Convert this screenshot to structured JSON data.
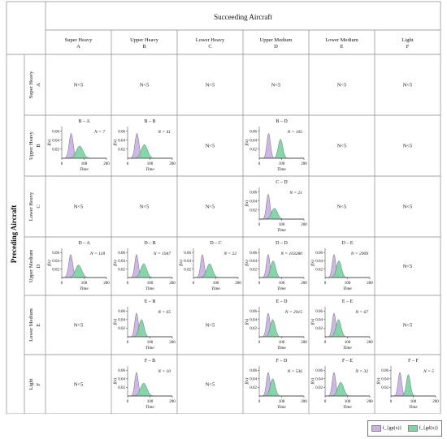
{
  "titles": {
    "succeeding": "Succeeding Aircraft",
    "preceding": "Preceding Aircraft"
  },
  "categories": [
    {
      "name": "Super Heavy",
      "code": "A"
    },
    {
      "name": "Upper Heavy",
      "code": "B"
    },
    {
      "name": "Lower Heavy",
      "code": "C"
    },
    {
      "name": "Upper Medium",
      "code": "D"
    },
    {
      "name": "Lower Medium",
      "code": "E"
    },
    {
      "name": "Light",
      "code": "F"
    }
  ],
  "empty_label": "N<5",
  "axis": {
    "xlabel": "Time",
    "ylabel": "f(x)",
    "xticks": [
      0,
      100,
      200
    ],
    "yticks": [
      0.02,
      0.04,
      0.06
    ],
    "xlim": [
      0,
      200
    ],
    "ylim": [
      0,
      0.07
    ]
  },
  "legend": {
    "series_a": "f_{gp(x)}",
    "series_b": "f_{gd(x)}"
  },
  "colors": {
    "series_a": "#c9b3e6",
    "series_b": "#7dd5a3",
    "outline": "#555555",
    "grid": "#888888"
  },
  "chart_data": {
    "type": "area",
    "rows": [
      [
        "N<5",
        "N<5",
        "N<5",
        "N<5",
        "N<5",
        "N<5"
      ],
      [
        {
          "title": "B – A",
          "n": "N = 7",
          "peaks": [
            {
              "mu": 42,
              "sigma": 9,
              "h": 0.055
            },
            {
              "mu": 80,
              "sigma": 15,
              "h": 0.027
            }
          ]
        },
        {
          "title": "B – B",
          "n": "N = 41",
          "peaks": [
            {
              "mu": 42,
              "sigma": 9,
              "h": 0.055
            },
            {
              "mu": 75,
              "sigma": 14,
              "h": 0.03
            }
          ]
        },
        "N<5",
        {
          "title": "B – D",
          "n": "N = 105",
          "peaks": [
            {
              "mu": 42,
              "sigma": 8,
              "h": 0.055
            },
            {
              "mu": 95,
              "sigma": 10,
              "h": 0.042
            }
          ]
        },
        "N<5",
        "N<5"
      ],
      [
        "N<5",
        "N<5",
        "N<5",
        {
          "title": "C – D",
          "n": "N = 21",
          "peaks": [
            {
              "mu": 40,
              "sigma": 8,
              "h": 0.055
            },
            {
              "mu": 68,
              "sigma": 13,
              "h": 0.024
            }
          ]
        },
        "N<5",
        "N<5"
      ],
      [
        {
          "title": "D – A",
          "n": "N = 118",
          "peaks": [
            {
              "mu": 40,
              "sigma": 9,
              "h": 0.055
            },
            {
              "mu": 75,
              "sigma": 14,
              "h": 0.03
            }
          ]
        },
        {
          "title": "D – B",
          "n": "N = 1947",
          "peaks": [
            {
              "mu": 40,
              "sigma": 8,
              "h": 0.055
            },
            {
              "mu": 72,
              "sigma": 13,
              "h": 0.033
            }
          ]
        },
        {
          "title": "D – C",
          "n": "N = 22",
          "peaks": [
            {
              "mu": 40,
              "sigma": 8,
              "h": 0.055
            },
            {
              "mu": 72,
              "sigma": 13,
              "h": 0.033
            }
          ]
        },
        {
          "title": "D – D",
          "n": "N = 103280",
          "peaks": [
            {
              "mu": 40,
              "sigma": 8,
              "h": 0.055
            },
            {
              "mu": 62,
              "sigma": 11,
              "h": 0.04
            }
          ]
        },
        {
          "title": "D – E",
          "n": "N = 2909",
          "peaks": [
            {
              "mu": 40,
              "sigma": 8,
              "h": 0.055
            },
            {
              "mu": 62,
              "sigma": 11,
              "h": 0.04
            }
          ]
        },
        "N<5"
      ],
      [
        "N<5",
        {
          "title": "E – B",
          "n": "N = 65",
          "peaks": [
            {
              "mu": 40,
              "sigma": 8,
              "h": 0.055
            },
            {
              "mu": 62,
              "sigma": 11,
              "h": 0.04
            }
          ]
        },
        "N<5",
        {
          "title": "E – D",
          "n": "N = 2915",
          "peaks": [
            {
              "mu": 40,
              "sigma": 8,
              "h": 0.055
            },
            {
              "mu": 60,
              "sigma": 11,
              "h": 0.04
            }
          ]
        },
        {
          "title": "E – E",
          "n": "N = 67",
          "peaks": [
            {
              "mu": 40,
              "sigma": 8,
              "h": 0.055
            },
            {
              "mu": 60,
              "sigma": 11,
              "h": 0.04
            }
          ]
        },
        "N<5"
      ],
      [
        "N<5",
        {
          "title": "F – B",
          "n": "N = 10",
          "peaks": [
            {
              "mu": 40,
              "sigma": 8,
              "h": 0.055
            },
            {
              "mu": 72,
              "sigma": 14,
              "h": 0.03
            }
          ]
        },
        "N<5",
        {
          "title": "F – D",
          "n": "N = 536",
          "peaks": [
            {
              "mu": 40,
              "sigma": 8,
              "h": 0.055
            },
            {
              "mu": 60,
              "sigma": 11,
              "h": 0.04
            }
          ]
        },
        {
          "title": "F – E",
          "n": "N = 32",
          "peaks": [
            {
              "mu": 40,
              "sigma": 8,
              "h": 0.055
            },
            {
              "mu": 70,
              "sigma": 13,
              "h": 0.032
            }
          ]
        },
        {
          "title": "F – F",
          "n": "N = 5",
          "peaks": [
            {
              "mu": 40,
              "sigma": 8,
              "h": 0.055
            },
            {
              "mu": 78,
              "sigma": 9,
              "h": 0.05
            }
          ]
        }
      ]
    ]
  }
}
